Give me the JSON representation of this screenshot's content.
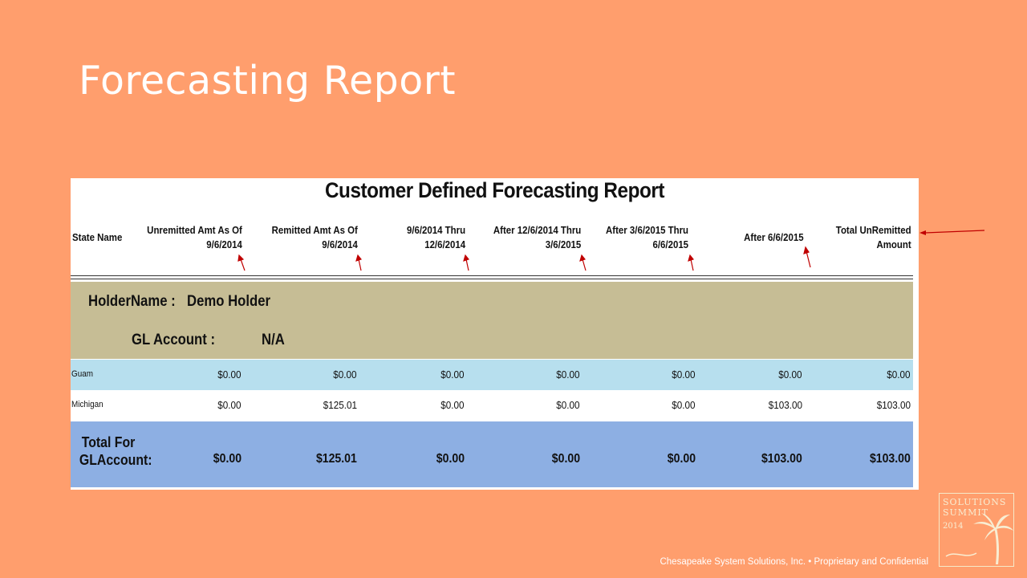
{
  "slide": {
    "title": "Forecasting Report",
    "footer": "Chesapeake System Solutions, Inc. • Proprietary and Confidential",
    "logo": {
      "line1": "SOLUTIONS",
      "line2": "SUMMIT",
      "year": "2014"
    }
  },
  "report": {
    "title": "Customer Defined Forecasting Report",
    "state_header": "State Name",
    "columns": [
      {
        "l1": "Unremitted Amt As Of",
        "l2": "9/6/2014"
      },
      {
        "l1": "Remitted Amt As Of",
        "l2": "9/6/2014"
      },
      {
        "l1": "9/6/2014 Thru",
        "l2": "12/6/2014"
      },
      {
        "l1": "After 12/6/2014 Thru",
        "l2": "3/6/2015"
      },
      {
        "l1": "After 3/6/2015 Thru",
        "l2": "6/6/2015"
      },
      {
        "l1": "After 6/6/2015",
        "l2": ""
      },
      {
        "l1": "Total UnRemitted",
        "l2": "Amount"
      }
    ],
    "holder": {
      "label": "HolderName :",
      "value": "Demo Holder"
    },
    "gl_account": {
      "label": "GL Account :",
      "value": "N/A"
    },
    "rows": [
      {
        "state": "Guam",
        "values": [
          "$0.00",
          "$0.00",
          "$0.00",
          "$0.00",
          "$0.00",
          "$0.00",
          "$0.00"
        ]
      },
      {
        "state": "Michigan",
        "values": [
          "$0.00",
          "$125.01",
          "$0.00",
          "$0.00",
          "$0.00",
          "$103.00",
          "$103.00"
        ]
      }
    ],
    "total": {
      "label_l1": "Total For",
      "label_l2": "GLAccount:",
      "values": [
        "$0.00",
        "$125.01",
        "$0.00",
        "$0.00",
        "$0.00",
        "$103.00",
        "$103.00"
      ]
    }
  },
  "colors": {
    "slide_bg": "#FF9E6D",
    "holder_band": "#C6BD95",
    "row_guam": "#B7DFEE",
    "row_total": "#8DAFE3",
    "arrow": "#C00000"
  }
}
